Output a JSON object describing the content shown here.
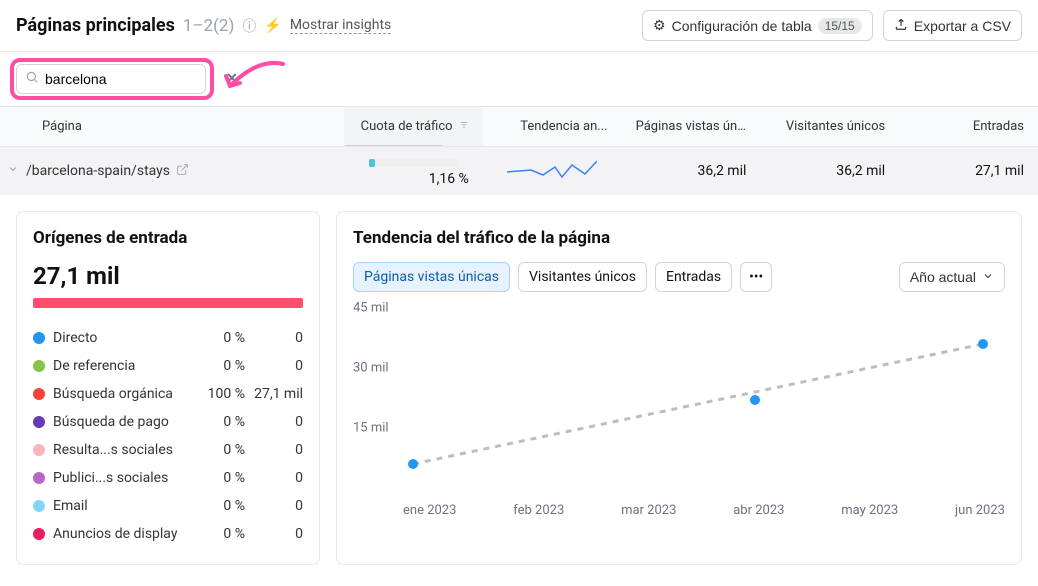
{
  "header": {
    "title": "Páginas principales",
    "count": "1–2(2)",
    "insights_link": "Mostrar insights",
    "config_label": "Configuración de tabla",
    "config_badge": "15/15",
    "export_label": "Exportar a CSV"
  },
  "search": {
    "value": "barcelona",
    "placeholder": ""
  },
  "table": {
    "columns": {
      "page": "Página",
      "share": "Cuota de tráfico",
      "trend": "Tendencia an...",
      "unique_views": "Páginas vistas únicas",
      "unique_visitors": "Visitantes únicos",
      "entries": "Entradas"
    },
    "row": {
      "page": "/barcelona-spain/stays",
      "share_pct": "1,16 %",
      "unique_views": "36,2 mil",
      "unique_visitors": "36,2 mil",
      "entries": "27,1 mil"
    }
  },
  "sources_panel": {
    "title": "Orígenes de entrada",
    "total": "27,1 mil",
    "bar_color": "#ff4d6d",
    "items": [
      {
        "label": "Directo",
        "pct": "0 %",
        "value": "0",
        "color": "#2196f3"
      },
      {
        "label": "De referencia",
        "pct": "0 %",
        "value": "0",
        "color": "#8bc34a"
      },
      {
        "label": "Búsqueda orgánica",
        "pct": "100 %",
        "value": "27,1 mil",
        "color": "#f44336"
      },
      {
        "label": "Búsqueda de pago",
        "pct": "0 %",
        "value": "0",
        "color": "#673ab7"
      },
      {
        "label": "Resulta...s sociales",
        "pct": "0 %",
        "value": "0",
        "color": "#ffb3ba"
      },
      {
        "label": "Publici...s sociales",
        "pct": "0 %",
        "value": "0",
        "color": "#ba68c8"
      },
      {
        "label": "Email",
        "pct": "0 %",
        "value": "0",
        "color": "#81d4fa"
      },
      {
        "label": "Anuncios de display",
        "pct": "0 %",
        "value": "0",
        "color": "#e91e63"
      }
    ]
  },
  "trend_panel": {
    "title": "Tendencia del tráfico de la página",
    "tabs": {
      "views": "Páginas vistas únicas",
      "visitors": "Visitantes únicos",
      "entries": "Entradas"
    },
    "period": "Año actual",
    "y_ticks": [
      "45 mil",
      "30 mil",
      "15 mil"
    ],
    "y_values": [
      45,
      30,
      15
    ],
    "ylim": [
      0,
      45
    ],
    "x_labels": [
      "ene 2023",
      "feb 2023",
      "mar 2023",
      "abr 2023",
      "may 2023",
      "jun 2023"
    ],
    "points": [
      {
        "x": 0,
        "y": 6
      },
      {
        "x": 3,
        "y": 22
      },
      {
        "x": 5,
        "y": 36
      }
    ],
    "point_color": "#2196f3",
    "trendline_color": "#bdbdbd"
  },
  "highlight_color": "#ff4da6"
}
